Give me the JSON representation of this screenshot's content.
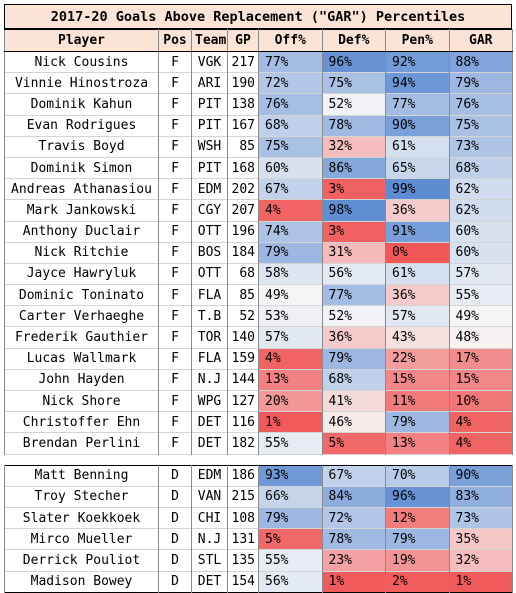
{
  "title": "2017-20 Goals Above Replacement (\"GAR\") Percentiles",
  "headers": {
    "player": "Player",
    "pos": "Pos",
    "team": "Team",
    "gp": "GP",
    "off": "Off%",
    "def": "Def%",
    "pen": "Pen%",
    "gar": "GAR"
  },
  "forwards": [
    {
      "player": "Nick Cousins",
      "pos": "F",
      "team": "VGK",
      "gp": "217",
      "off": "77%",
      "def": "96%",
      "pen": "92%",
      "gar": "88%"
    },
    {
      "player": "Vinnie Hinostroza",
      "pos": "F",
      "team": "ARI",
      "gp": "190",
      "off": "72%",
      "def": "75%",
      "pen": "94%",
      "gar": "79%"
    },
    {
      "player": "Dominik Kahun",
      "pos": "F",
      "team": "PIT",
      "gp": "138",
      "off": "76%",
      "def": "52%",
      "pen": "77%",
      "gar": "76%"
    },
    {
      "player": "Evan Rodrigues",
      "pos": "F",
      "team": "PIT",
      "gp": "167",
      "off": "68%",
      "def": "78%",
      "pen": "90%",
      "gar": "75%"
    },
    {
      "player": "Travis Boyd",
      "pos": "F",
      "team": "WSH",
      "gp": "85",
      "off": "75%",
      "def": "32%",
      "pen": "61%",
      "gar": "73%"
    },
    {
      "player": "Dominik Simon",
      "pos": "F",
      "team": "PIT",
      "gp": "168",
      "off": "60%",
      "def": "86%",
      "pen": "65%",
      "gar": "68%"
    },
    {
      "player": "Andreas Athanasiou",
      "pos": "F",
      "team": "EDM",
      "gp": "202",
      "off": "67%",
      "def": "3%",
      "pen": "99%",
      "gar": "62%"
    },
    {
      "player": "Mark Jankowski",
      "pos": "F",
      "team": "CGY",
      "gp": "207",
      "off": "4%",
      "def": "98%",
      "pen": "36%",
      "gar": "62%"
    },
    {
      "player": "Anthony Duclair",
      "pos": "F",
      "team": "OTT",
      "gp": "196",
      "off": "74%",
      "def": "3%",
      "pen": "91%",
      "gar": "60%"
    },
    {
      "player": "Nick Ritchie",
      "pos": "F",
      "team": "BOS",
      "gp": "184",
      "off": "79%",
      "def": "31%",
      "pen": "0%",
      "gar": "60%"
    },
    {
      "player": "Jayce Hawryluk",
      "pos": "F",
      "team": "OTT",
      "gp": "68",
      "off": "58%",
      "def": "56%",
      "pen": "61%",
      "gar": "57%"
    },
    {
      "player": "Dominic Toninato",
      "pos": "F",
      "team": "FLA",
      "gp": "85",
      "off": "49%",
      "def": "77%",
      "pen": "36%",
      "gar": "55%"
    },
    {
      "player": "Carter Verhaeghe",
      "pos": "F",
      "team": "T.B",
      "gp": "52",
      "off": "53%",
      "def": "52%",
      "pen": "57%",
      "gar": "49%"
    },
    {
      "player": "Frederik Gauthier",
      "pos": "F",
      "team": "TOR",
      "gp": "140",
      "off": "57%",
      "def": "36%",
      "pen": "43%",
      "gar": "48%"
    },
    {
      "player": "Lucas Wallmark",
      "pos": "F",
      "team": "FLA",
      "gp": "159",
      "off": "4%",
      "def": "79%",
      "pen": "22%",
      "gar": "17%"
    },
    {
      "player": "John Hayden",
      "pos": "F",
      "team": "N.J",
      "gp": "144",
      "off": "13%",
      "def": "68%",
      "pen": "15%",
      "gar": "15%"
    },
    {
      "player": "Nick Shore",
      "pos": "F",
      "team": "WPG",
      "gp": "127",
      "off": "20%",
      "def": "41%",
      "pen": "11%",
      "gar": "10%"
    },
    {
      "player": "Christoffer Ehn",
      "pos": "F",
      "team": "DET",
      "gp": "116",
      "off": "1%",
      "def": "46%",
      "pen": "79%",
      "gar": "4%"
    },
    {
      "player": "Brendan Perlini",
      "pos": "F",
      "team": "DET",
      "gp": "182",
      "off": "55%",
      "def": "5%",
      "pen": "13%",
      "gar": "4%"
    }
  ],
  "defensemen": [
    {
      "player": "Matt Benning",
      "pos": "D",
      "team": "EDM",
      "gp": "186",
      "off": "93%",
      "def": "67%",
      "pen": "70%",
      "gar": "90%"
    },
    {
      "player": "Troy Stecher",
      "pos": "D",
      "team": "VAN",
      "gp": "215",
      "off": "66%",
      "def": "84%",
      "pen": "96%",
      "gar": "83%"
    },
    {
      "player": "Slater Koekkoek",
      "pos": "D",
      "team": "CHI",
      "gp": "108",
      "off": "79%",
      "def": "72%",
      "pen": "12%",
      "gar": "73%"
    },
    {
      "player": "Mirco Mueller",
      "pos": "D",
      "team": "N.J",
      "gp": "131",
      "off": "5%",
      "def": "78%",
      "pen": "79%",
      "gar": "35%"
    },
    {
      "player": "Derrick Pouliot",
      "pos": "D",
      "team": "STL",
      "gp": "135",
      "off": "55%",
      "def": "23%",
      "pen": "19%",
      "gar": "32%"
    },
    {
      "player": "Madison Bowey",
      "pos": "D",
      "team": "DET",
      "gp": "154",
      "off": "56%",
      "def": "1%",
      "pen": "2%",
      "gar": "1%"
    }
  ],
  "colors": {
    "high": "#5a8ad2",
    "mid": "#f7f7f7",
    "low": "#f15757",
    "header_bg": "#fbe4d5"
  }
}
